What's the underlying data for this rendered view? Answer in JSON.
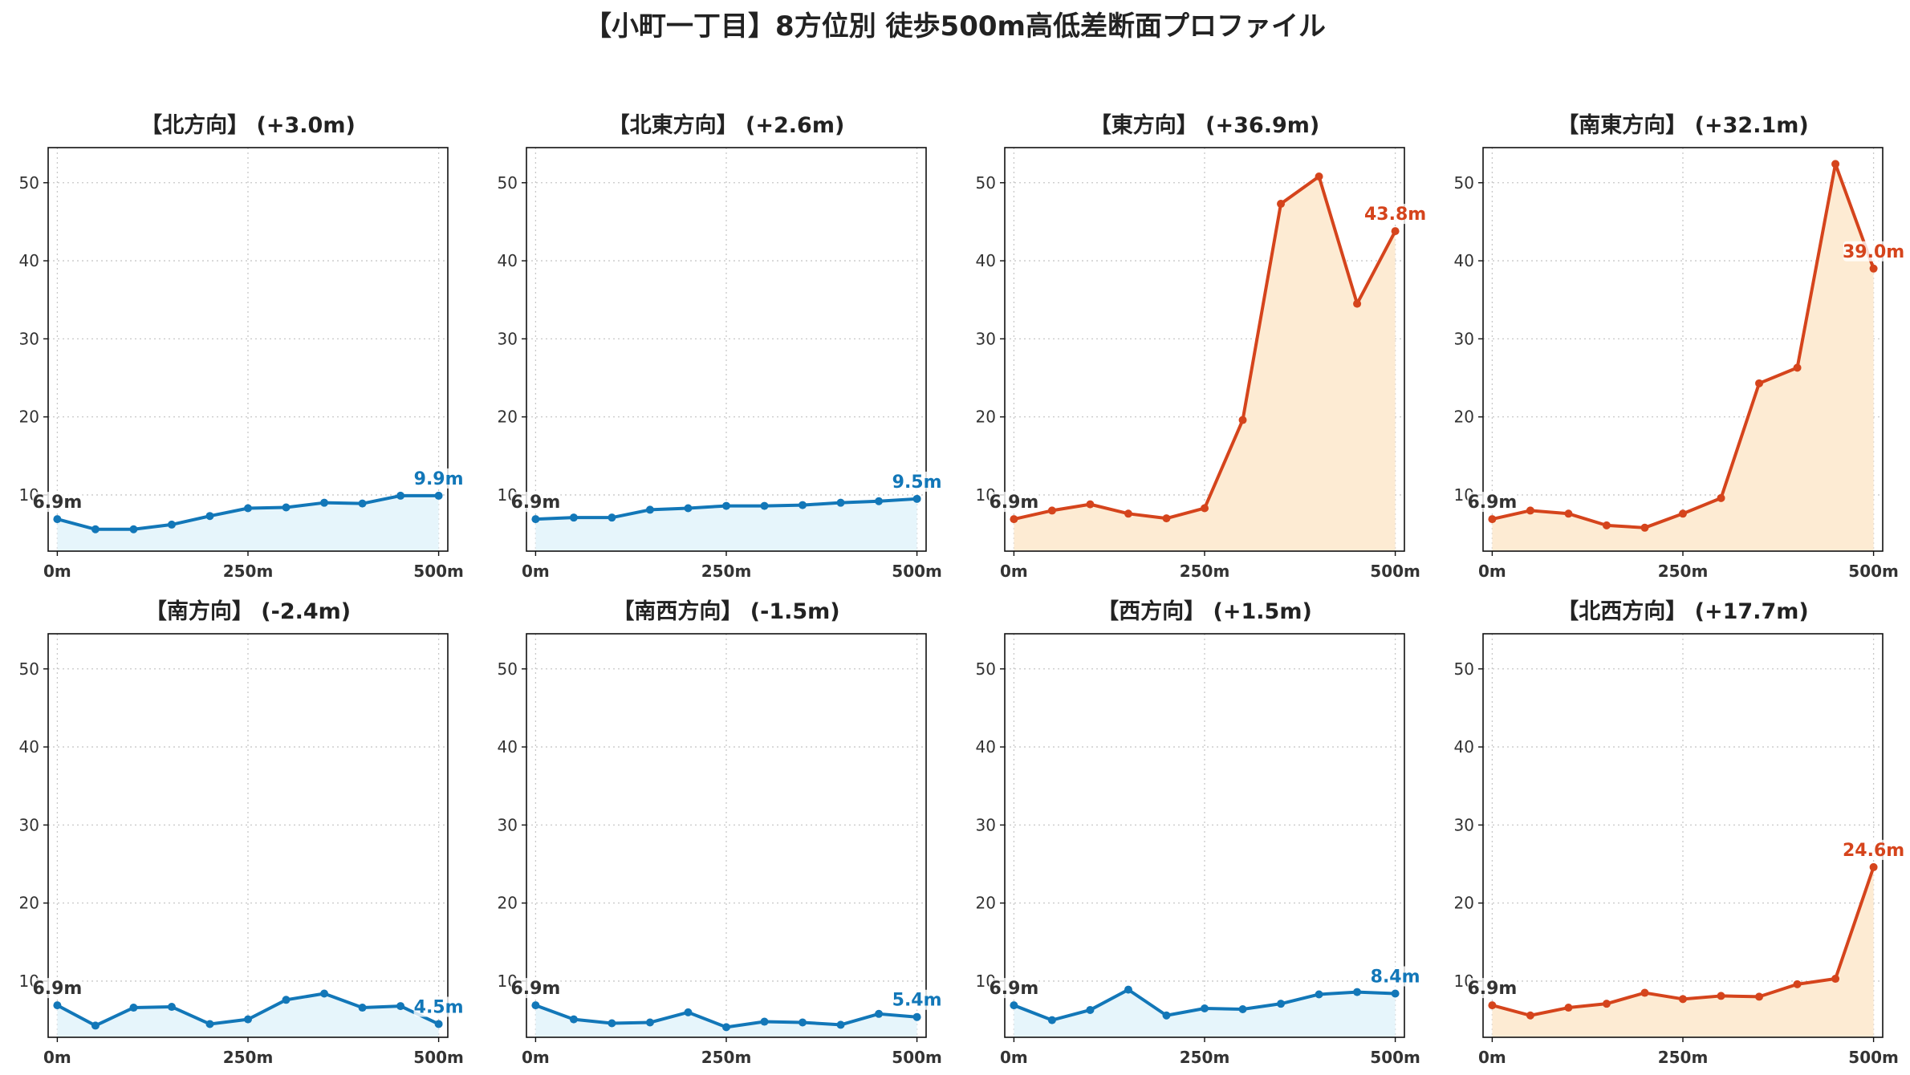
{
  "title": "【小町一丁目】8方位別 徒歩500m高低差断面プロファイル",
  "colors": {
    "up_line": "#d5441c",
    "up_fill": "#fdebd3",
    "flat_line": "#1277b8",
    "flat_fill": "#e6f5fb",
    "start_label": "#333333",
    "grid": "#c8c8c8"
  },
  "chart_data": [
    {
      "type": "line",
      "direction": "【北方向】",
      "delta": "(+3.0m)",
      "title": "【北方向】 (+3.0m)",
      "trend": "flat",
      "x": [
        0,
        50,
        100,
        150,
        200,
        250,
        300,
        350,
        400,
        450,
        500
      ],
      "y": [
        6.9,
        5.6,
        5.6,
        6.2,
        7.3,
        8.3,
        8.4,
        9.0,
        8.9,
        9.9,
        9.9
      ],
      "start_label": "6.9m",
      "end_label": "9.9m",
      "xticks": [
        "0m",
        "250m",
        "500m"
      ],
      "yticks": [
        "10",
        "20",
        "30",
        "40",
        "50"
      ],
      "ylim": [
        2.8,
        54.5
      ],
      "xlim": [
        -12,
        512
      ],
      "grid": true
    },
    {
      "type": "line",
      "direction": "【北東方向】",
      "delta": "(+2.6m)",
      "title": "【北東方向】 (+2.6m)",
      "trend": "flat",
      "x": [
        0,
        50,
        100,
        150,
        200,
        250,
        300,
        350,
        400,
        450,
        500
      ],
      "y": [
        6.9,
        7.1,
        7.1,
        8.1,
        8.3,
        8.6,
        8.6,
        8.7,
        9.0,
        9.2,
        9.5
      ],
      "start_label": "6.9m",
      "end_label": "9.5m",
      "xticks": [
        "0m",
        "250m",
        "500m"
      ],
      "yticks": [
        "10",
        "20",
        "30",
        "40",
        "50"
      ],
      "ylim": [
        2.8,
        54.5
      ],
      "xlim": [
        -12,
        512
      ],
      "grid": true
    },
    {
      "type": "line",
      "direction": "【東方向】",
      "delta": "(+36.9m)",
      "title": "【東方向】 (+36.9m)",
      "trend": "up",
      "x": [
        0,
        50,
        100,
        150,
        200,
        250,
        300,
        350,
        400,
        450,
        500
      ],
      "y": [
        6.9,
        8.0,
        8.8,
        7.6,
        7.0,
        8.3,
        19.6,
        47.3,
        50.8,
        34.5,
        43.8
      ],
      "start_label": "6.9m",
      "end_label": "43.8m",
      "xticks": [
        "0m",
        "250m",
        "500m"
      ],
      "yticks": [
        "10",
        "20",
        "30",
        "40",
        "50"
      ],
      "ylim": [
        2.8,
        54.5
      ],
      "xlim": [
        -12,
        512
      ],
      "grid": true
    },
    {
      "type": "line",
      "direction": "【南東方向】",
      "delta": "(+32.1m)",
      "title": "【南東方向】 (+32.1m)",
      "trend": "up",
      "x": [
        0,
        50,
        100,
        150,
        200,
        250,
        300,
        350,
        400,
        450,
        500
      ],
      "y": [
        6.9,
        8.0,
        7.6,
        6.1,
        5.8,
        7.6,
        9.6,
        24.3,
        26.3,
        52.4,
        39.0
      ],
      "start_label": "6.9m",
      "end_label": "39.0m",
      "xticks": [
        "0m",
        "250m",
        "500m"
      ],
      "yticks": [
        "10",
        "20",
        "30",
        "40",
        "50"
      ],
      "ylim": [
        2.8,
        54.5
      ],
      "xlim": [
        -12,
        512
      ],
      "grid": true
    },
    {
      "type": "line",
      "direction": "【南方向】",
      "delta": "(-2.4m)",
      "title": "【南方向】 (-2.4m)",
      "trend": "flat",
      "x": [
        0,
        50,
        100,
        150,
        200,
        250,
        300,
        350,
        400,
        450,
        500
      ],
      "y": [
        6.9,
        4.3,
        6.6,
        6.7,
        4.5,
        5.1,
        7.6,
        8.4,
        6.6,
        6.8,
        4.5
      ],
      "start_label": "6.9m",
      "end_label": "4.5m",
      "xticks": [
        "0m",
        "250m",
        "500m"
      ],
      "yticks": [
        "10",
        "20",
        "30",
        "40",
        "50"
      ],
      "ylim": [
        2.8,
        54.5
      ],
      "xlim": [
        -12,
        512
      ],
      "grid": true
    },
    {
      "type": "line",
      "direction": "【南西方向】",
      "delta": "(-1.5m)",
      "title": "【南西方向】 (-1.5m)",
      "trend": "flat",
      "x": [
        0,
        50,
        100,
        150,
        200,
        250,
        300,
        350,
        400,
        450,
        500
      ],
      "y": [
        6.9,
        5.1,
        4.6,
        4.7,
        6.0,
        4.1,
        4.8,
        4.7,
        4.4,
        5.8,
        5.4
      ],
      "start_label": "6.9m",
      "end_label": "5.4m",
      "xticks": [
        "0m",
        "250m",
        "500m"
      ],
      "yticks": [
        "10",
        "20",
        "30",
        "40",
        "50"
      ],
      "ylim": [
        2.8,
        54.5
      ],
      "xlim": [
        -12,
        512
      ],
      "grid": true
    },
    {
      "type": "line",
      "direction": "【西方向】",
      "delta": "(+1.5m)",
      "title": "【西方向】 (+1.5m)",
      "trend": "flat",
      "x": [
        0,
        50,
        100,
        150,
        200,
        250,
        300,
        350,
        400,
        450,
        500
      ],
      "y": [
        6.9,
        5.0,
        6.3,
        8.9,
        5.6,
        6.5,
        6.4,
        7.1,
        8.3,
        8.6,
        8.4
      ],
      "start_label": "6.9m",
      "end_label": "8.4m",
      "xticks": [
        "0m",
        "250m",
        "500m"
      ],
      "yticks": [
        "10",
        "20",
        "30",
        "40",
        "50"
      ],
      "ylim": [
        2.8,
        54.5
      ],
      "xlim": [
        -12,
        512
      ],
      "grid": true
    },
    {
      "type": "line",
      "direction": "【北西方向】",
      "delta": "(+17.7m)",
      "title": "【北西方向】 (+17.7m)",
      "trend": "up",
      "x": [
        0,
        50,
        100,
        150,
        200,
        250,
        300,
        350,
        400,
        450,
        500
      ],
      "y": [
        6.9,
        5.6,
        6.6,
        7.1,
        8.5,
        7.7,
        8.1,
        8.0,
        9.6,
        10.3,
        24.6
      ],
      "start_label": "6.9m",
      "end_label": "24.6m",
      "xticks": [
        "0m",
        "250m",
        "500m"
      ],
      "yticks": [
        "10",
        "20",
        "30",
        "40",
        "50"
      ],
      "ylim": [
        2.8,
        54.5
      ],
      "xlim": [
        -12,
        512
      ],
      "grid": true
    }
  ]
}
